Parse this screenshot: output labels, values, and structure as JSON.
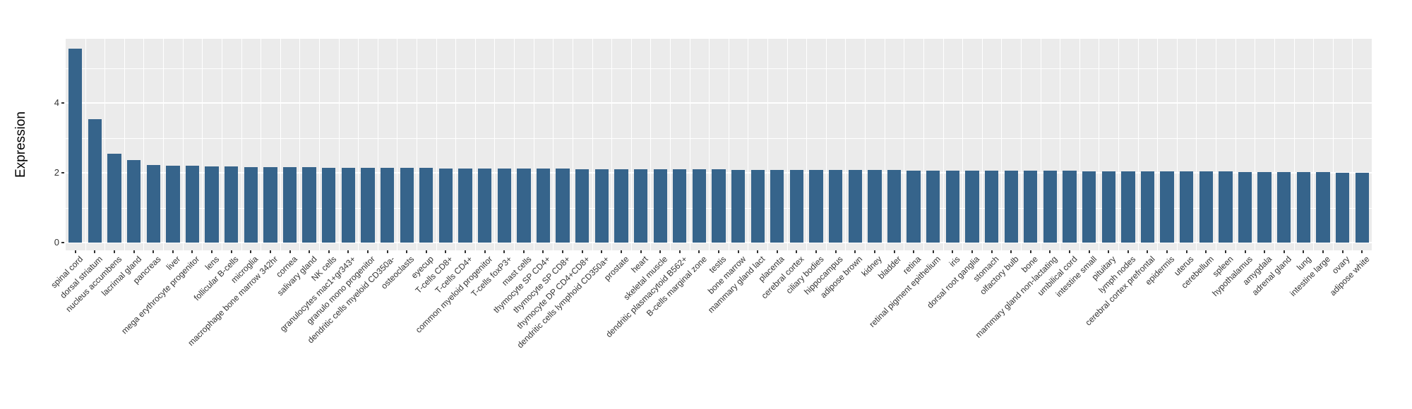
{
  "chart_data": {
    "type": "bar",
    "title": "",
    "xlabel": "",
    "ylabel": "Expression",
    "legend": null,
    "grid": true,
    "panel_bg": "#EBEBEB",
    "grid_color": "#FFFFFF",
    "bar_color": "#36648B",
    "axis_text_color": "#333333",
    "x_label_rotation": 45,
    "y_ticks": [
      0,
      2,
      4
    ],
    "y_minor_ticks": [
      1,
      3,
      5
    ],
    "ylim": [
      -0.22,
      5.84
    ],
    "categories": [
      "spinal cord",
      "dorsal striatum",
      "nucleus accumbens",
      "lacrimal gland",
      "pancreas",
      "liver",
      "mega erythrocyte progenitor",
      "lens",
      "follicular B-cells",
      "microglia",
      "macrophage bone marrow 342hr",
      "cornea",
      "salivary gland",
      "NK cells",
      "granulocytes mac1+gr343+",
      "granulo mono progenitor",
      "dendritic cells myeloid CD350a-",
      "osteoclasts",
      "eyecup",
      "T-cells CD8+",
      "T-cells CD4+",
      "common myeloid progenitor",
      "T-cells foxP3+",
      "mast cells",
      "thymocyte SP CD4+",
      "thymocyte SP CD8+",
      "thymocyte DP CD4+CD8+",
      "dendritic cells lymphoid CD350a+",
      "prostate",
      "heart",
      "skeletal muscle",
      "dendritic plasmacytoid B562+",
      "B-cells marginal zone",
      "testis",
      "bone marrow",
      "mammary gland lact",
      "placenta",
      "cerebral cortex",
      "ciliary bodies",
      "hippocampus",
      "adipose brown",
      "kidney",
      "bladder",
      "retina",
      "retinal pigment epithelium",
      "iris",
      "dorsal root ganglia",
      "stomach",
      "olfactory bulb",
      "bone",
      "mammary gland non-lactating",
      "umbilical cord",
      "intestine small",
      "pituitary",
      "lymph nodes",
      "cerebral cortex prefrontal",
      "epidermis",
      "uterus",
      "cerebellum",
      "spleen",
      "hypothalamus",
      "amygdala",
      "adrenal gland",
      "lung",
      "intestine large",
      "ovary",
      "adipose white"
    ],
    "values": [
      5.56,
      3.54,
      2.54,
      2.36,
      2.22,
      2.21,
      2.2,
      2.19,
      2.18,
      2.17,
      2.17,
      2.16,
      2.16,
      2.15,
      2.15,
      2.15,
      2.14,
      2.14,
      2.14,
      2.13,
      2.13,
      2.13,
      2.12,
      2.12,
      2.12,
      2.12,
      2.11,
      2.11,
      2.11,
      2.11,
      2.1,
      2.1,
      2.1,
      2.1,
      2.09,
      2.09,
      2.09,
      2.09,
      2.08,
      2.08,
      2.08,
      2.08,
      2.08,
      2.07,
      2.07,
      2.07,
      2.07,
      2.06,
      2.06,
      2.06,
      2.06,
      2.06,
      2.05,
      2.05,
      2.05,
      2.05,
      2.04,
      2.04,
      2.04,
      2.04,
      2.03,
      2.03,
      2.03,
      2.02,
      2.02,
      2.01,
      2.0
    ]
  }
}
